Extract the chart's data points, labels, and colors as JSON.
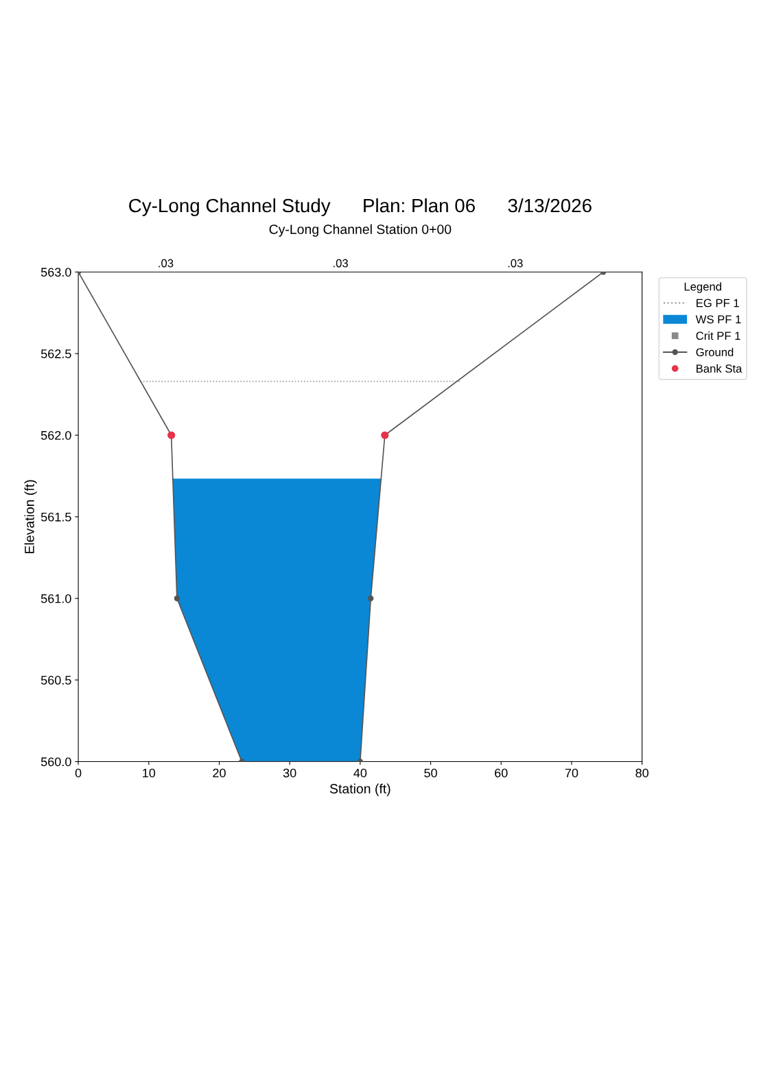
{
  "chart_data": {
    "type": "line",
    "title": "Cy-Long Channel Study      Plan: Plan 06      3/13/2026",
    "subtitle": "Cy-Long Channel Station 0+00",
    "xlabel": "Station (ft)",
    "ylabel": "Elevation (ft)",
    "legend_title": "Legend",
    "xlim": [
      0,
      80
    ],
    "xticks": [
      0,
      10,
      20,
      30,
      40,
      50,
      60,
      70,
      80
    ],
    "ylim": [
      560,
      563
    ],
    "yticks": [
      {
        "value": 560,
        "label": "560.0"
      },
      {
        "value": 560.5,
        "label": "560.5"
      },
      {
        "value": 561,
        "label": "561.0"
      },
      {
        "value": 561.5,
        "label": "561.5"
      },
      {
        "value": 562,
        "label": "562.0"
      },
      {
        "value": 562.5,
        "label": "562.5"
      },
      {
        "value": 563,
        "label": "563.0"
      }
    ],
    "grid": false,
    "legend": "top right",
    "series": [
      {
        "name": "EG PF 1",
        "line_style": "dotted",
        "marker": "none",
        "color": "#9a9a9a",
        "x": [
          8.8,
          54.3
        ],
        "values": [
          562.33,
          562.33
        ]
      },
      {
        "name": "WS PF 1",
        "type": "area",
        "line_style": "solid",
        "marker": "none",
        "color": "#0a88d6",
        "x": [
          13.42,
          14.0,
          23.2,
          40.0,
          41.5,
          42.96
        ],
        "values": [
          561.73,
          561.73,
          561.73,
          561.73,
          561.73,
          561.73
        ]
      },
      {
        "name": "Crit PF 1",
        "type": "scatter",
        "marker": "square",
        "color": "#8a8a8a"
      },
      {
        "name": "Ground",
        "line_style": "solid",
        "marker": "circle",
        "color": "#555555",
        "x": [
          0,
          13.2,
          14.0,
          23.2,
          40.0,
          41.5,
          43.5,
          74.5
        ],
        "values": [
          563.0,
          562.0,
          561.0,
          560.0,
          560.0,
          561.0,
          562.0,
          563.0
        ]
      },
      {
        "name": "Bank Sta",
        "type": "scatter",
        "marker": "circle",
        "color": "#e8324a",
        "x": [
          13.2,
          43.5
        ],
        "values": [
          562.0,
          562.0
        ]
      }
    ],
    "annotations": [
      ".03",
      ".03",
      ".03"
    ]
  }
}
